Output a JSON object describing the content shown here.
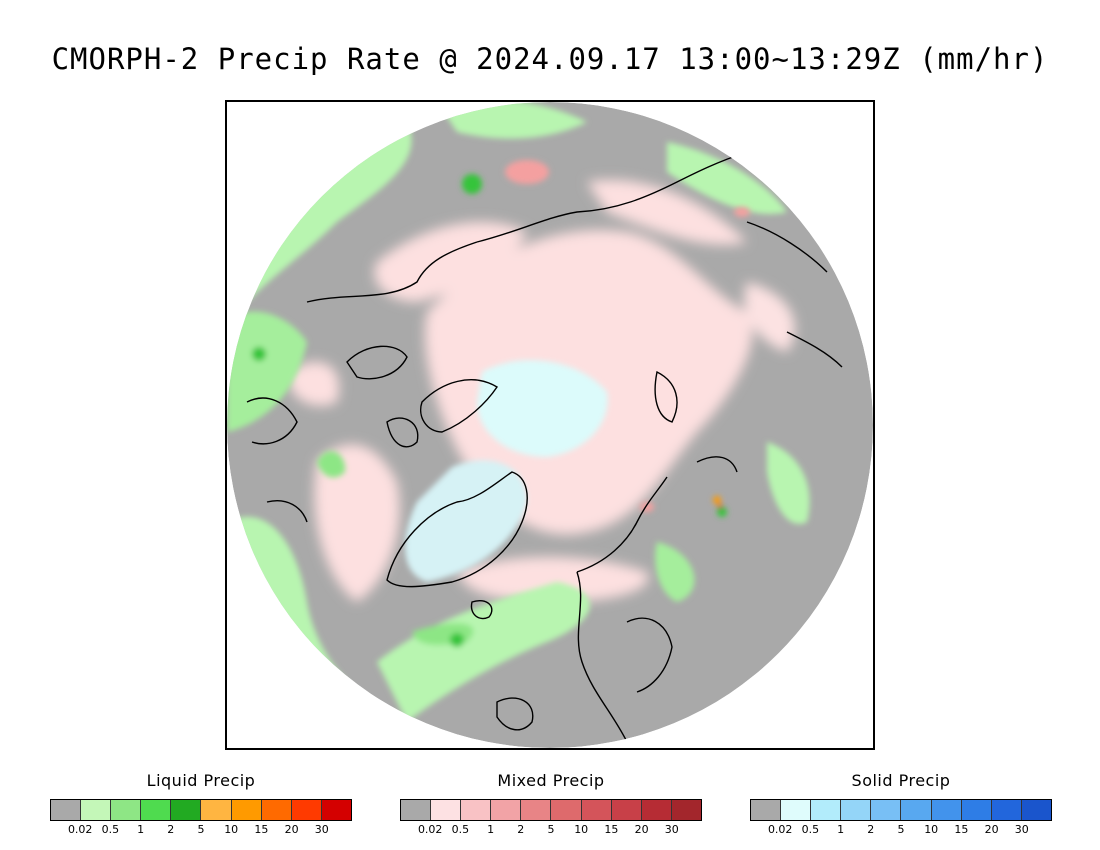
{
  "title": "CMORPH-2 Precip Rate @ 2024.09.17 13:00~13:29Z (mm/hr)",
  "map": {
    "projection": "polar stereographic (north pole)",
    "colors": {
      "background": "#a9a9a9",
      "coastline": "#000000",
      "liquid_light": "#b8f5b0",
      "liquid_mid": "#8de685",
      "liquid_heavy": "#35c43a",
      "mixed_light": "#fde0e0",
      "mixed_mid": "#f4a0a0",
      "solid_light": "#dcfbfb"
    }
  },
  "legends": [
    {
      "id": "liquid",
      "title": "Liquid Precip",
      "ticks": [
        "0.02",
        "0.5",
        "1",
        "2",
        "5",
        "10",
        "15",
        "20",
        "30"
      ],
      "colors": [
        "#a9a9a9",
        "#c4f7b8",
        "#8ee685",
        "#4fdb4f",
        "#22aa22",
        "#ffb541",
        "#ff9a00",
        "#ff6a00",
        "#ff3a00",
        "#d40000"
      ]
    },
    {
      "id": "mixed",
      "title": "Mixed Precip",
      "ticks": [
        "0.02",
        "0.5",
        "1",
        "2",
        "5",
        "10",
        "15",
        "20",
        "30"
      ],
      "colors": [
        "#a9a9a9",
        "#fde1e3",
        "#f9c2c5",
        "#f2a3a6",
        "#e88486",
        "#de6a6c",
        "#d4545a",
        "#c84048",
        "#b62c34",
        "#a3262c"
      ]
    },
    {
      "id": "solid",
      "title": "Solid Precip",
      "ticks": [
        "0.02",
        "0.5",
        "1",
        "2",
        "5",
        "10",
        "15",
        "20",
        "30"
      ],
      "colors": [
        "#a9a9a9",
        "#dffcfc",
        "#b2ecfb",
        "#94d5f8",
        "#78bff5",
        "#58a8f0",
        "#4293ec",
        "#2e7de6",
        "#2266dc",
        "#1a55cc"
      ]
    }
  ]
}
